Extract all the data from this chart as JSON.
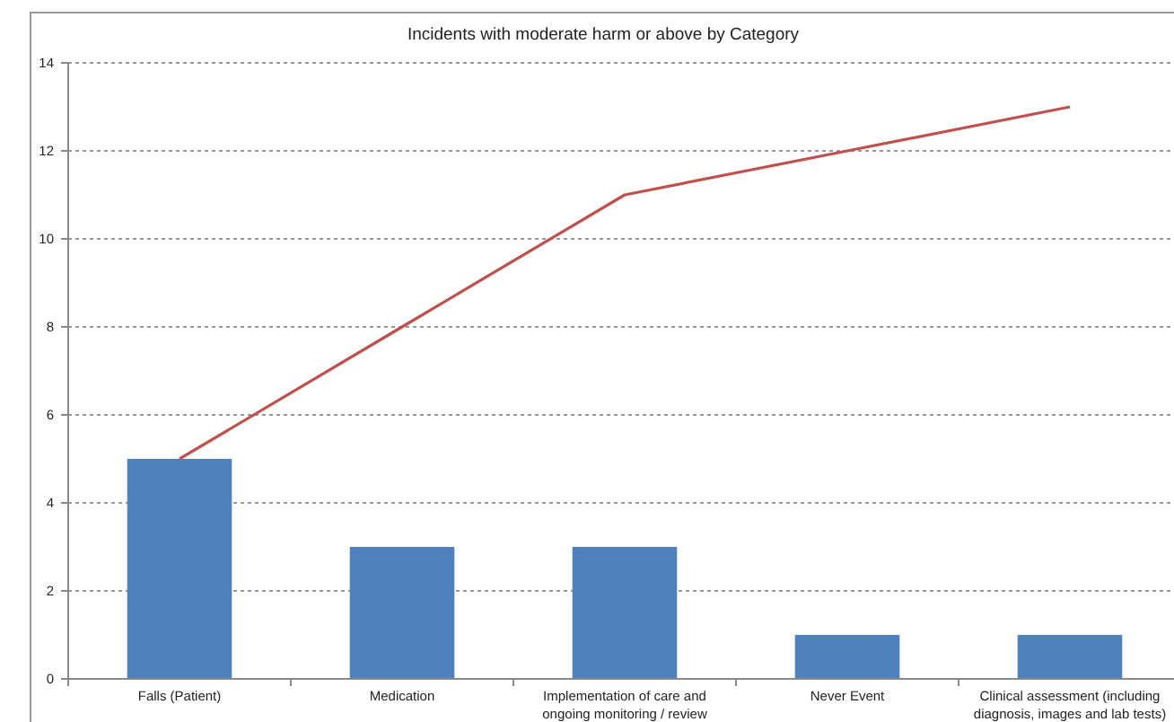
{
  "chart_data": {
    "type": "bar",
    "title": "Incidents with moderate harm or above by Category",
    "categories": [
      "Falls (Patient)",
      "Medication",
      "Implementation of care and ongoing monitoring / review",
      "Never Event",
      "Clinical assessment (including diagnosis, images and lab tests)"
    ],
    "series": [
      {
        "color": "#4f81bd",
        "values": [
          5,
          3,
          3,
          1,
          1
        ]
      },
      {
        "type": "line",
        "color": "#c0504d",
        "values": [
          5,
          8,
          11,
          12,
          13
        ]
      }
    ],
    "ylim": [
      0,
      14
    ],
    "yticks": [
      0,
      2,
      4,
      6,
      8,
      10,
      12,
      14
    ],
    "grid": "y",
    "marker": "none"
  }
}
